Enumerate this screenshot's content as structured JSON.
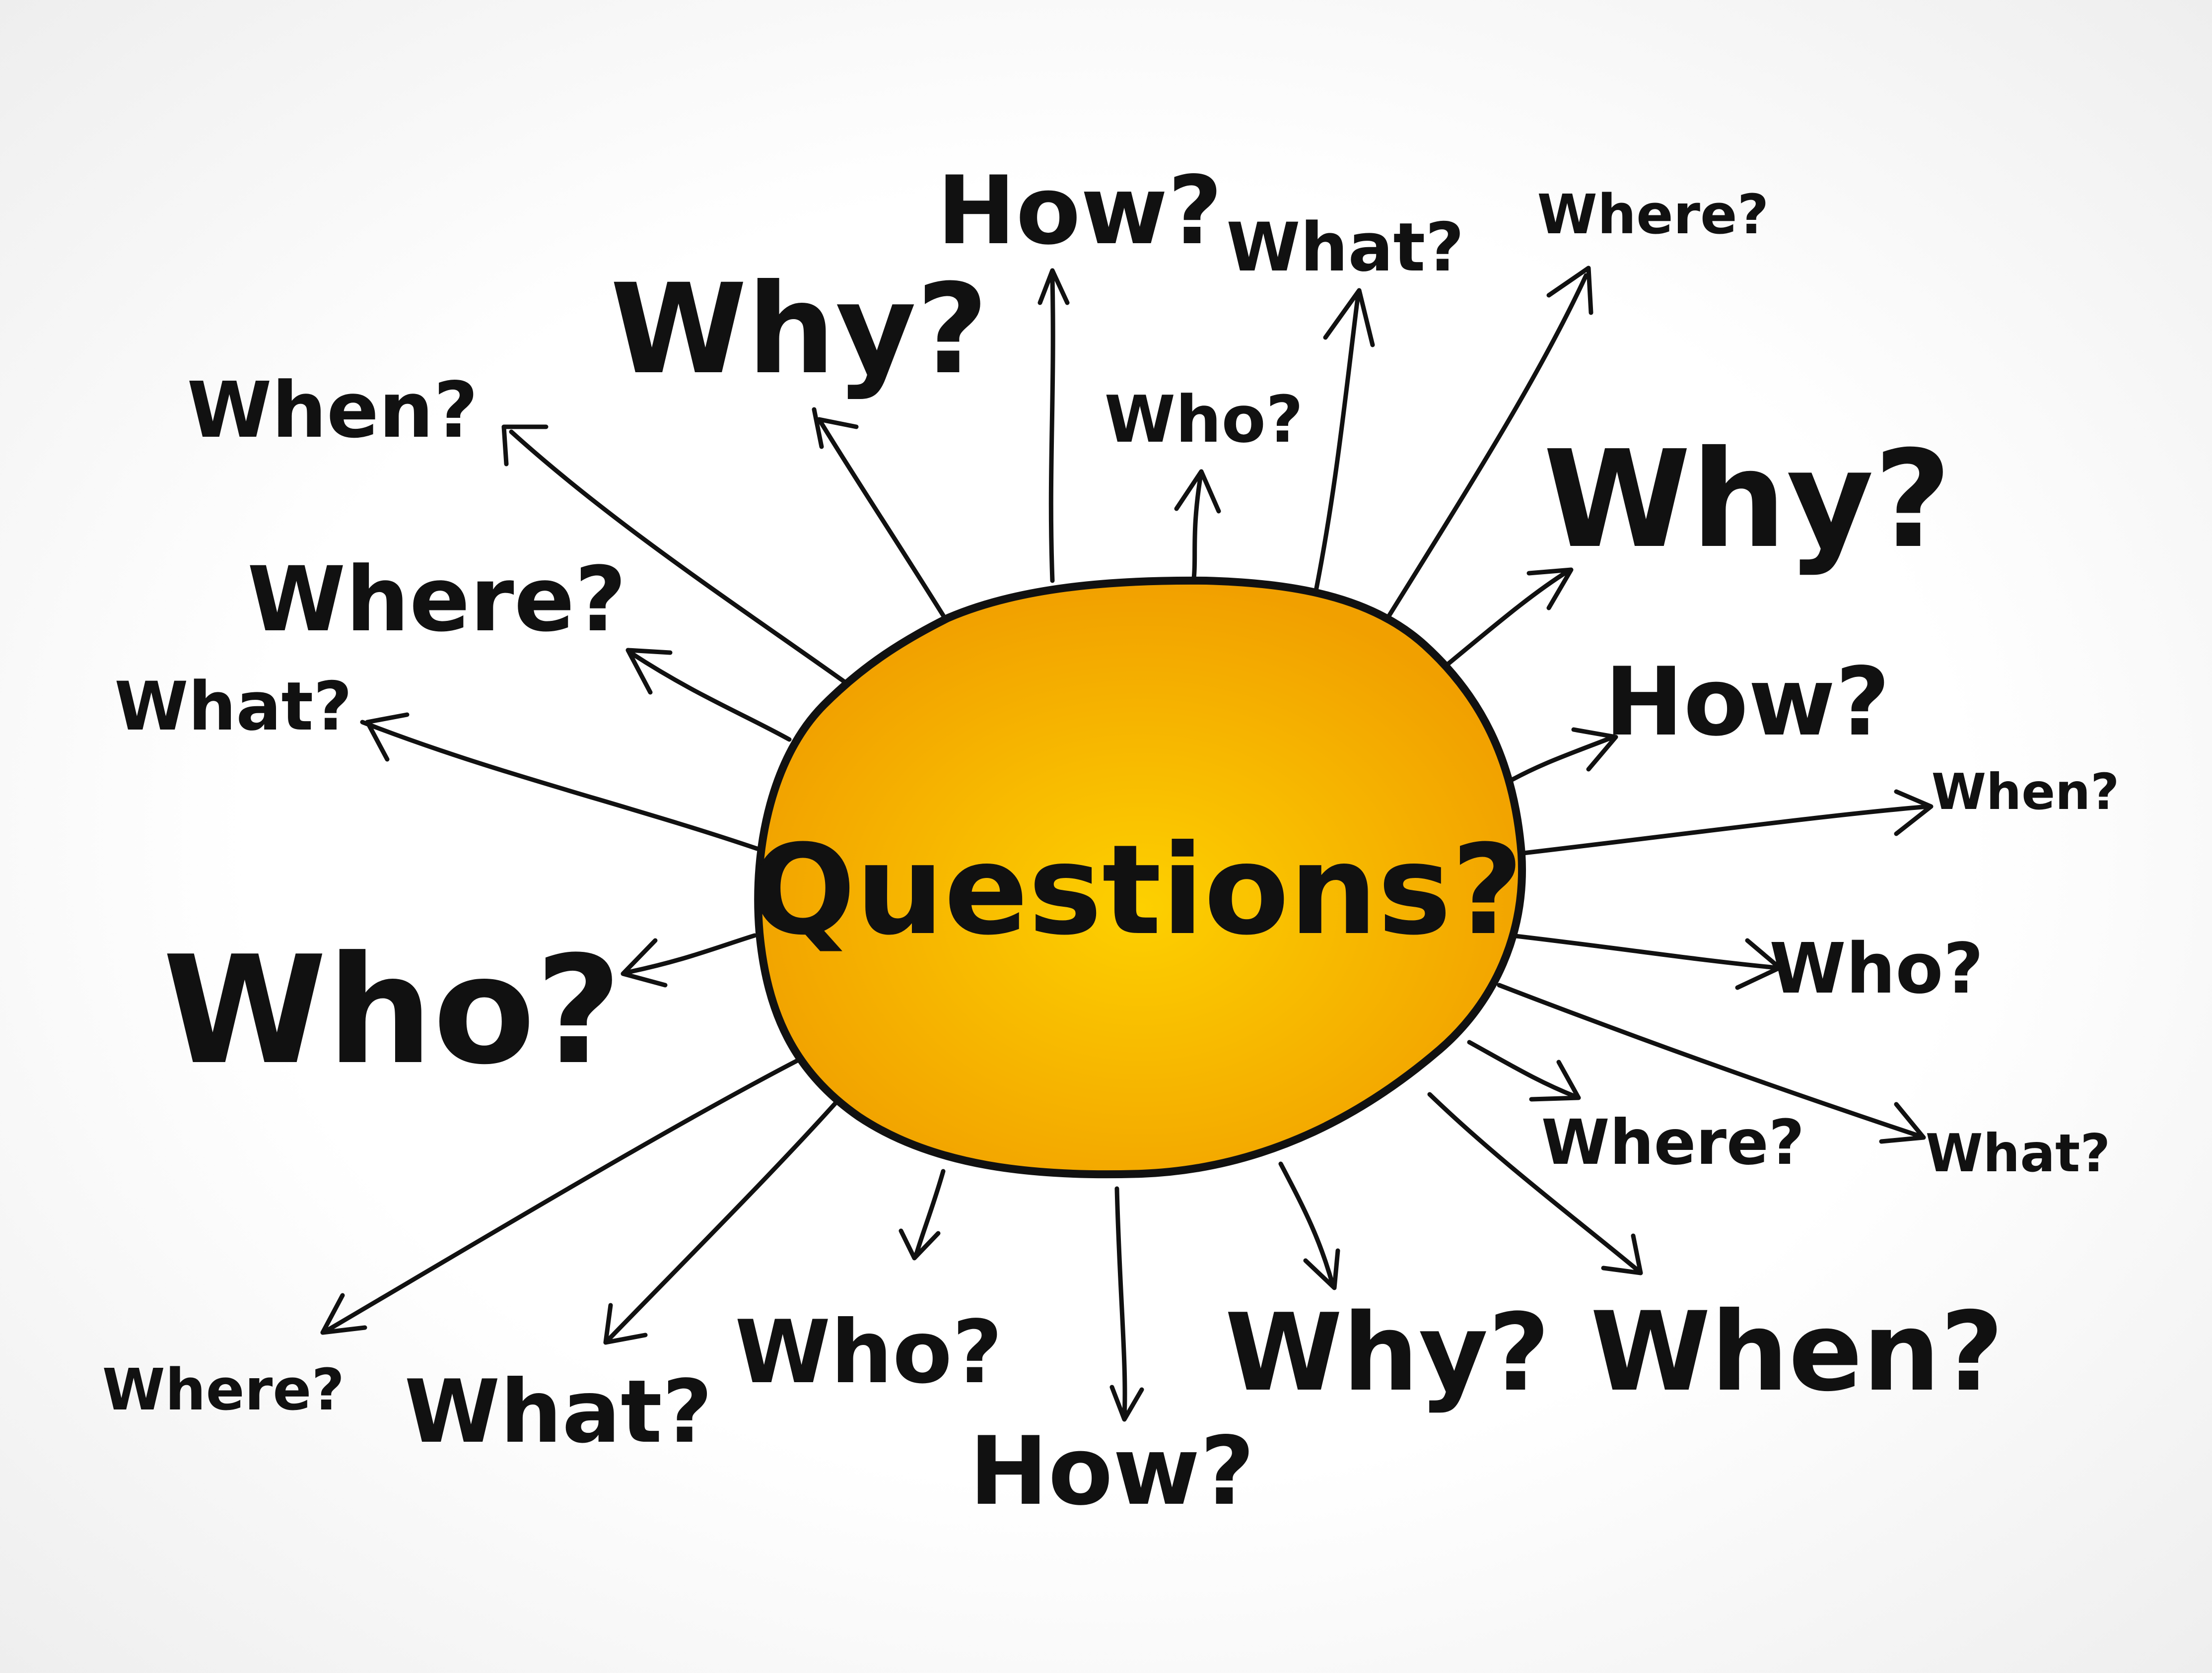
{
  "colors": {
    "center_fill_inner": "#fdd000",
    "center_fill_outer": "#f1a000",
    "ink": "#111111"
  },
  "center": {
    "label": "Questions?"
  },
  "words": [
    {
      "id": "how-top",
      "text": "How?"
    },
    {
      "id": "what-top",
      "text": "What?"
    },
    {
      "id": "where-top-right",
      "text": "Where?"
    },
    {
      "id": "why-top-left",
      "text": "Why?"
    },
    {
      "id": "who-top",
      "text": "Who?"
    },
    {
      "id": "when-top-left",
      "text": "When?"
    },
    {
      "id": "why-right",
      "text": "Why?"
    },
    {
      "id": "where-left",
      "text": "Where?"
    },
    {
      "id": "what-left",
      "text": "What?"
    },
    {
      "id": "how-right",
      "text": "How?"
    },
    {
      "id": "when-right",
      "text": "When?"
    },
    {
      "id": "who-left",
      "text": "Who?"
    },
    {
      "id": "who-right",
      "text": "Who?"
    },
    {
      "id": "where-lower-right",
      "text": "Where?"
    },
    {
      "id": "what-lower-right",
      "text": "What?"
    },
    {
      "id": "when-bottom-right",
      "text": "When?"
    },
    {
      "id": "who-bottom",
      "text": "Who?"
    },
    {
      "id": "why-bottom",
      "text": "Why?"
    },
    {
      "id": "where-bottom-left",
      "text": "Where?"
    },
    {
      "id": "what-bottom-left",
      "text": "What?"
    },
    {
      "id": "how-bottom",
      "text": "How?"
    }
  ]
}
